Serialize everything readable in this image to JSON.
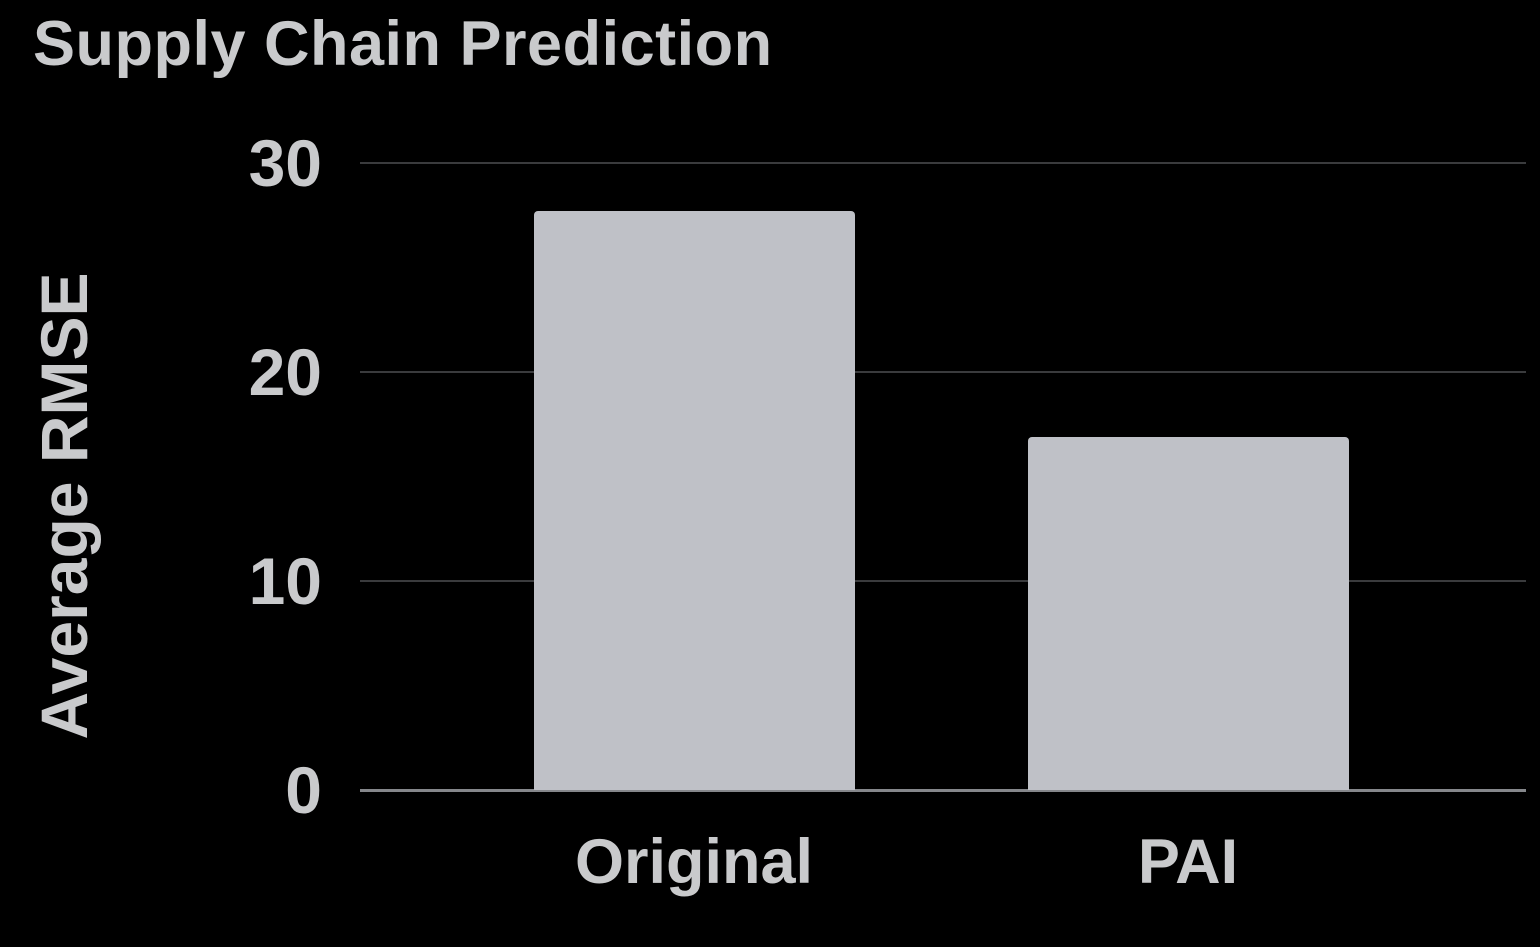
{
  "chart_data": {
    "type": "bar",
    "title": "Supply Chain Prediction",
    "ylabel": "Average RMSE",
    "xlabel": "",
    "categories": [
      "Original",
      "PAI"
    ],
    "values": [
      27.7,
      16.9
    ],
    "ylim": [
      0,
      30
    ],
    "yticks": [
      0,
      10,
      20,
      30
    ],
    "grid": "horizontal",
    "legend": "none",
    "colors": {
      "background": "#000000",
      "bar_fill": "#bfc1c7",
      "text": "#c9cacc",
      "gridline": "#3a3b3d",
      "axis_line": "#85878b"
    }
  }
}
